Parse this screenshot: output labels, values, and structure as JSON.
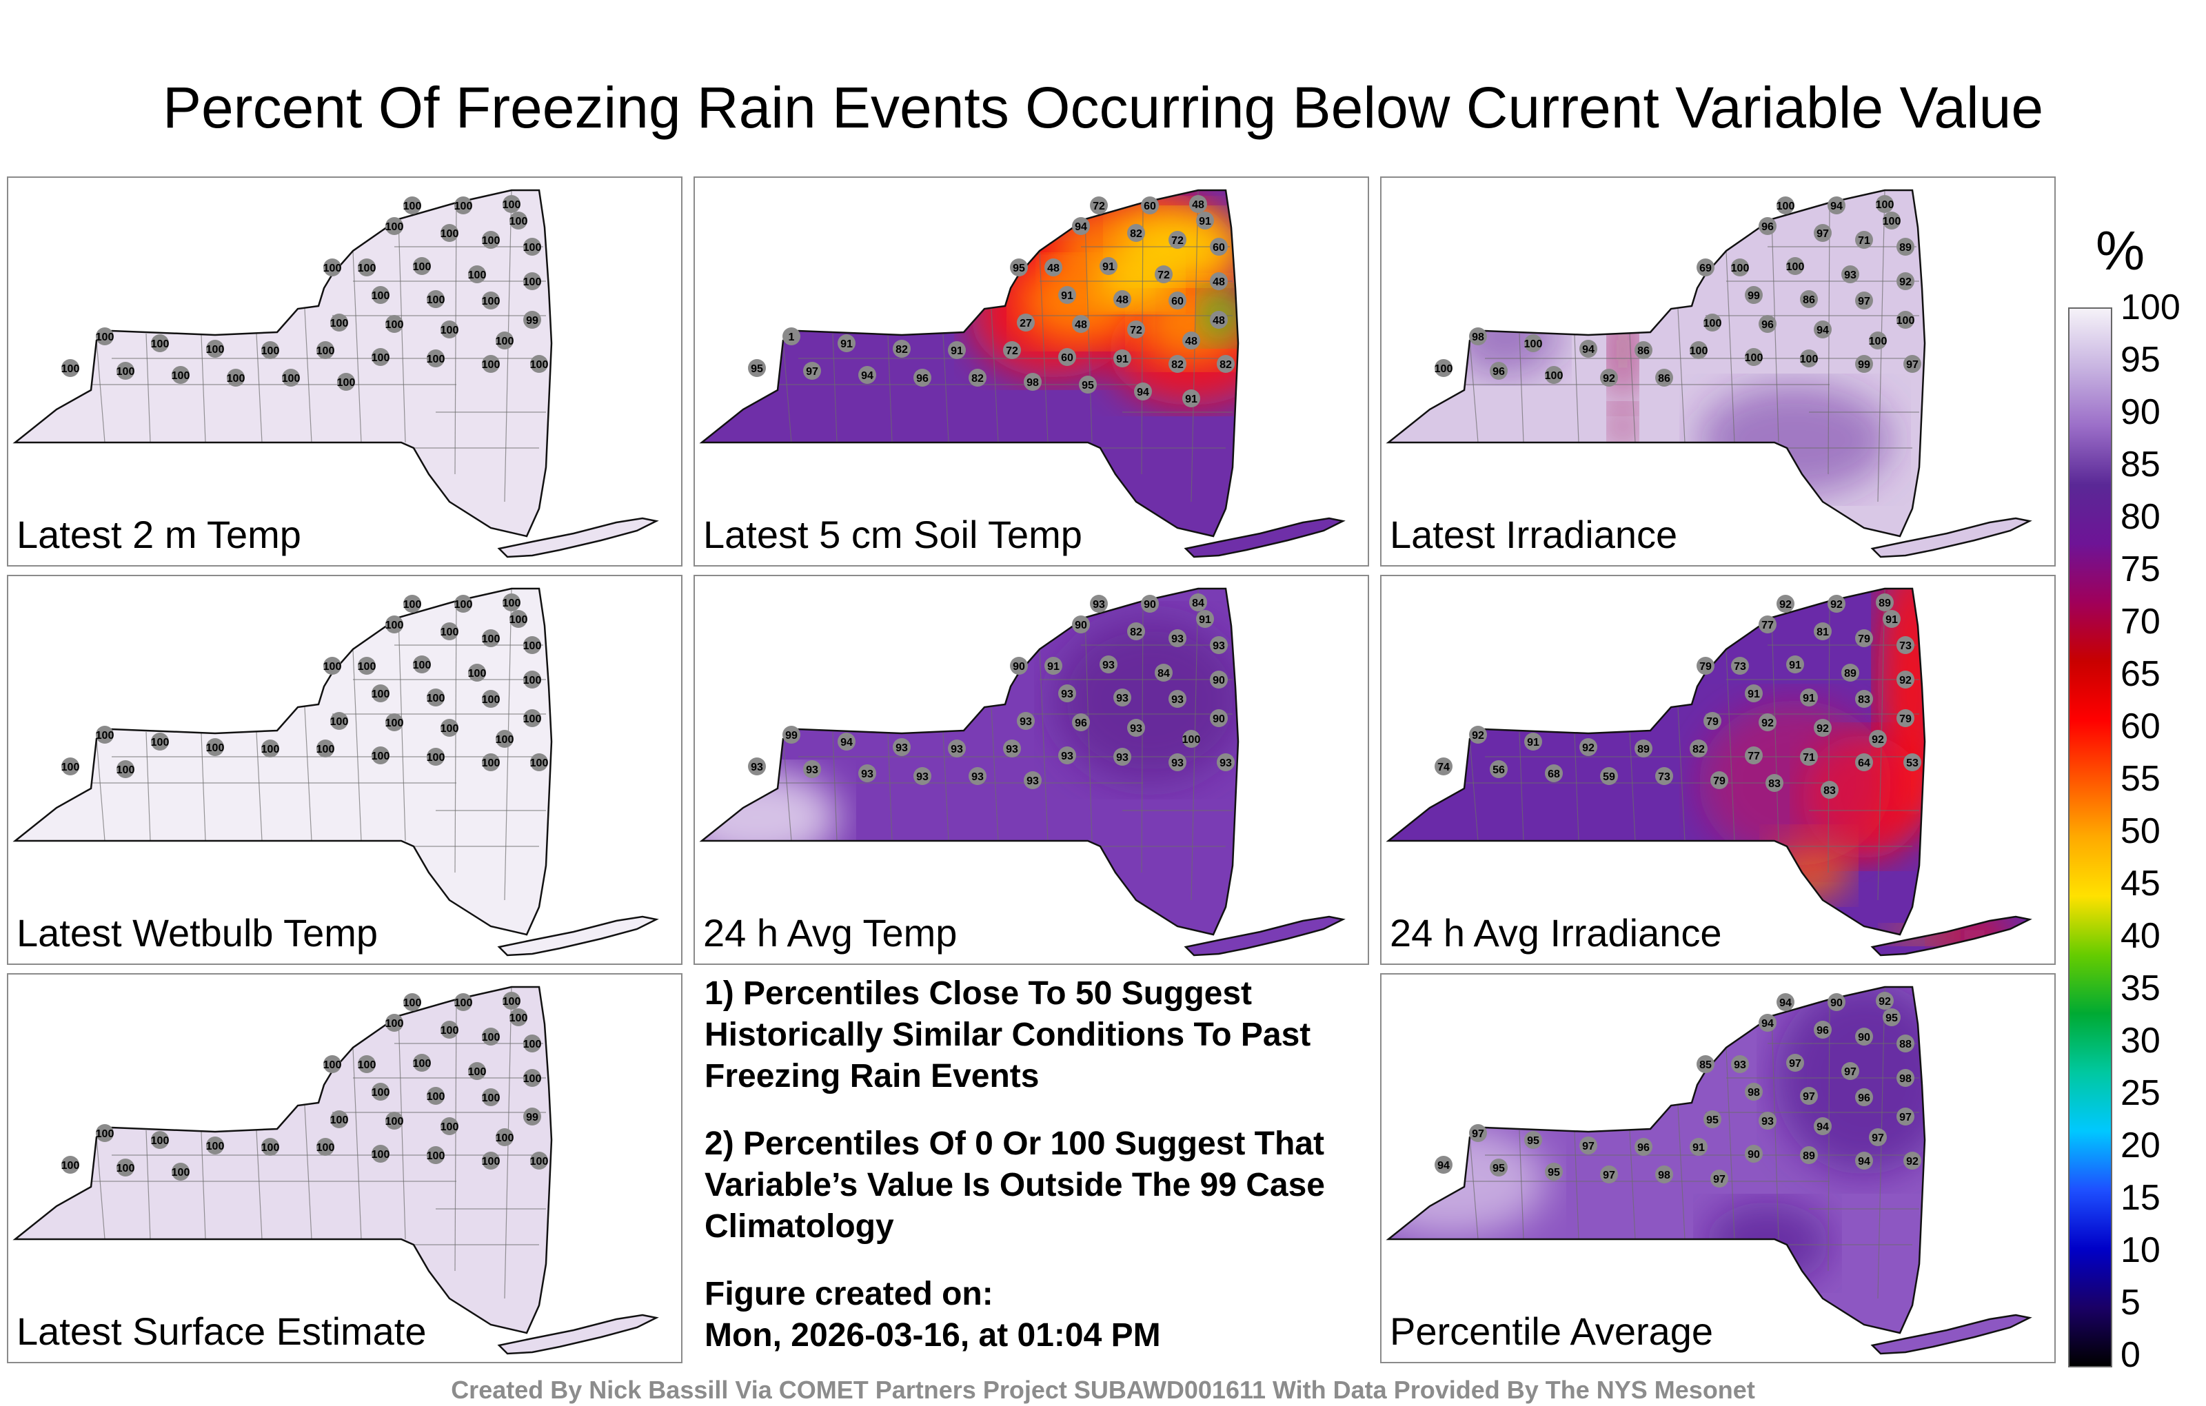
{
  "title": "Percent Of Freezing Rain Events Occurring Below Current Variable Value",
  "panels": [
    {
      "label": "Latest 2 m Temp",
      "fill": "#ebe3f1",
      "overlays": [],
      "stations": [
        "100",
        "100",
        "100",
        "100",
        "100",
        "100",
        "100",
        "100",
        "100",
        "100",
        "100",
        "100",
        "100",
        "100",
        "100",
        "100",
        "99",
        "100",
        "100",
        "100",
        "100",
        "100",
        "100",
        "100",
        "100",
        "100",
        "100",
        "100",
        "100",
        "100",
        "100",
        "100",
        "100",
        "100",
        "100",
        "100"
      ]
    },
    {
      "label": "Latest 5 cm Soil Temp",
      "fill": "#6f2fa8",
      "overlays": [
        {
          "color": "#ff1010",
          "op": 0.85
        },
        {
          "color": "#ff8800",
          "op": 0.9
        },
        {
          "color": "#ffd400",
          "op": 0.85
        },
        {
          "color": "#30c030",
          "op": 0.9
        }
      ],
      "stations": [
        "72",
        "60",
        "48",
        "91",
        "94",
        "82",
        "72",
        "60",
        "95",
        "48",
        "91",
        "72",
        "48",
        "91",
        "48",
        "60",
        "48",
        "27",
        "48",
        "72",
        "48",
        "1",
        "91",
        "82",
        "91",
        "72",
        "60",
        "91",
        "82",
        "82",
        "95",
        "97",
        "94",
        "96",
        "82",
        "98",
        "95",
        "94",
        "91"
      ]
    },
    {
      "label": "Latest Irradiance",
      "fill": "#d9c8e6",
      "overlays": [
        {
          "color": "#a01050",
          "op": 0.75
        },
        {
          "color": "#6a2aa0",
          "op": 0.5
        }
      ],
      "stations": [
        "100",
        "94",
        "100",
        "100",
        "96",
        "97",
        "71",
        "89",
        "69",
        "100",
        "100",
        "93",
        "92",
        "99",
        "86",
        "97",
        "100",
        "100",
        "96",
        "94",
        "100",
        "98",
        "100",
        "94",
        "86",
        "100",
        "100",
        "100",
        "99",
        "97",
        "100",
        "96",
        "100",
        "92",
        "86"
      ]
    },
    {
      "label": "Latest Wetbulb Temp",
      "fill": "#f2eef6",
      "overlays": [],
      "stations": [
        "100",
        "100",
        "100",
        "100",
        "100",
        "100",
        "100",
        "100",
        "100",
        "100",
        "100",
        "100",
        "100",
        "100",
        "100",
        "100",
        "100",
        "100",
        "100",
        "100",
        "100",
        "100",
        "100",
        "100",
        "100",
        "100",
        "100",
        "100",
        "100",
        "100",
        "100",
        "100"
      ]
    },
    {
      "label": "24 h Avg Temp",
      "fill": "#7a3cb4",
      "overlays": [
        {
          "color": "#5a1a8a",
          "op": 0.6
        },
        {
          "color": "#e0d0ec",
          "op": 0.9
        }
      ],
      "stations": [
        "93",
        "90",
        "84",
        "91",
        "90",
        "82",
        "93",
        "93",
        "90",
        "91",
        "93",
        "84",
        "90",
        "93",
        "93",
        "93",
        "90",
        "93",
        "96",
        "93",
        "100",
        "99",
        "94",
        "93",
        "93",
        "93",
        "93",
        "93",
        "93",
        "93",
        "93",
        "93",
        "93",
        "93",
        "93",
        "93"
      ]
    },
    {
      "label": "24 h Avg Irradiance",
      "fill": "#6a2aa8",
      "overlays": [
        {
          "color": "#ff1010",
          "op": 0.9
        },
        {
          "color": "#ff7000",
          "op": 0.8
        },
        {
          "color": "#c01060",
          "op": 0.6
        }
      ],
      "stations": [
        "92",
        "92",
        "89",
        "91",
        "77",
        "81",
        "79",
        "73",
        "79",
        "73",
        "91",
        "89",
        "92",
        "91",
        "91",
        "83",
        "79",
        "79",
        "92",
        "92",
        "92",
        "92",
        "91",
        "92",
        "89",
        "82",
        "77",
        "71",
        "64",
        "53",
        "74",
        "56",
        "68",
        "59",
        "73",
        "79",
        "83",
        "83"
      ]
    },
    {
      "label": "Latest Surface Estimate",
      "fill": "#e6dcee",
      "overlays": [],
      "stations": [
        "100",
        "100",
        "100",
        "100",
        "100",
        "100",
        "100",
        "100",
        "100",
        "100",
        "100",
        "100",
        "100",
        "100",
        "100",
        "100",
        "99",
        "100",
        "100",
        "100",
        "100",
        "100",
        "100",
        "100",
        "100",
        "100",
        "100",
        "100",
        "100",
        "100",
        "100",
        "100",
        "100"
      ]
    },
    {
      "label": "Percentile Average",
      "fill": "#8d57c2",
      "overlays": [
        {
          "color": "#4f1690",
          "op": 0.6
        },
        {
          "color": "#d8c6e8",
          "op": 0.75
        }
      ],
      "stations": [
        "94",
        "90",
        "92",
        "95",
        "94",
        "96",
        "90",
        "88",
        "85",
        "93",
        "97",
        "97",
        "98",
        "98",
        "97",
        "96",
        "97",
        "95",
        "93",
        "94",
        "97",
        "97",
        "95",
        "97",
        "96",
        "91",
        "90",
        "89",
        "94",
        "92",
        "94",
        "95",
        "95",
        "97",
        "98",
        "97"
      ]
    }
  ],
  "notes": {
    "line1": "1) Percentiles Close To 50 Suggest Historically Similar Conditions To Past Freezing Rain Events",
    "line2": "2) Percentiles Of 0 Or 100 Suggest That Variable’s Value Is Outside The 99 Case Climatology",
    "created_label": "Figure created on:",
    "created_value": "Mon, 2026-03-16, at 01:04 PM"
  },
  "colorbar": {
    "unit": "%",
    "ticks": [
      "100",
      "95",
      "90",
      "85",
      "80",
      "75",
      "70",
      "65",
      "60",
      "55",
      "50",
      "45",
      "40",
      "35",
      "30",
      "25",
      "20",
      "15",
      "10",
      "5",
      "0"
    ],
    "colors": [
      "#000000",
      "#1a0066",
      "#0000c8",
      "#1e50ff",
      "#00c8ff",
      "#00c8a0",
      "#00aa33",
      "#66cc00",
      "#ffe100",
      "#ffaa00",
      "#ff5500",
      "#ff0000",
      "#c80000",
      "#a0005a",
      "#6e1496",
      "#5a2896",
      "#9b6ec8",
      "#c8b4e1",
      "#f5f2f8"
    ]
  },
  "footer": "Created By Nick Bassill Via COMET Partners Project SUBAWD001611 With Data Provided By The NYS Mesonet"
}
